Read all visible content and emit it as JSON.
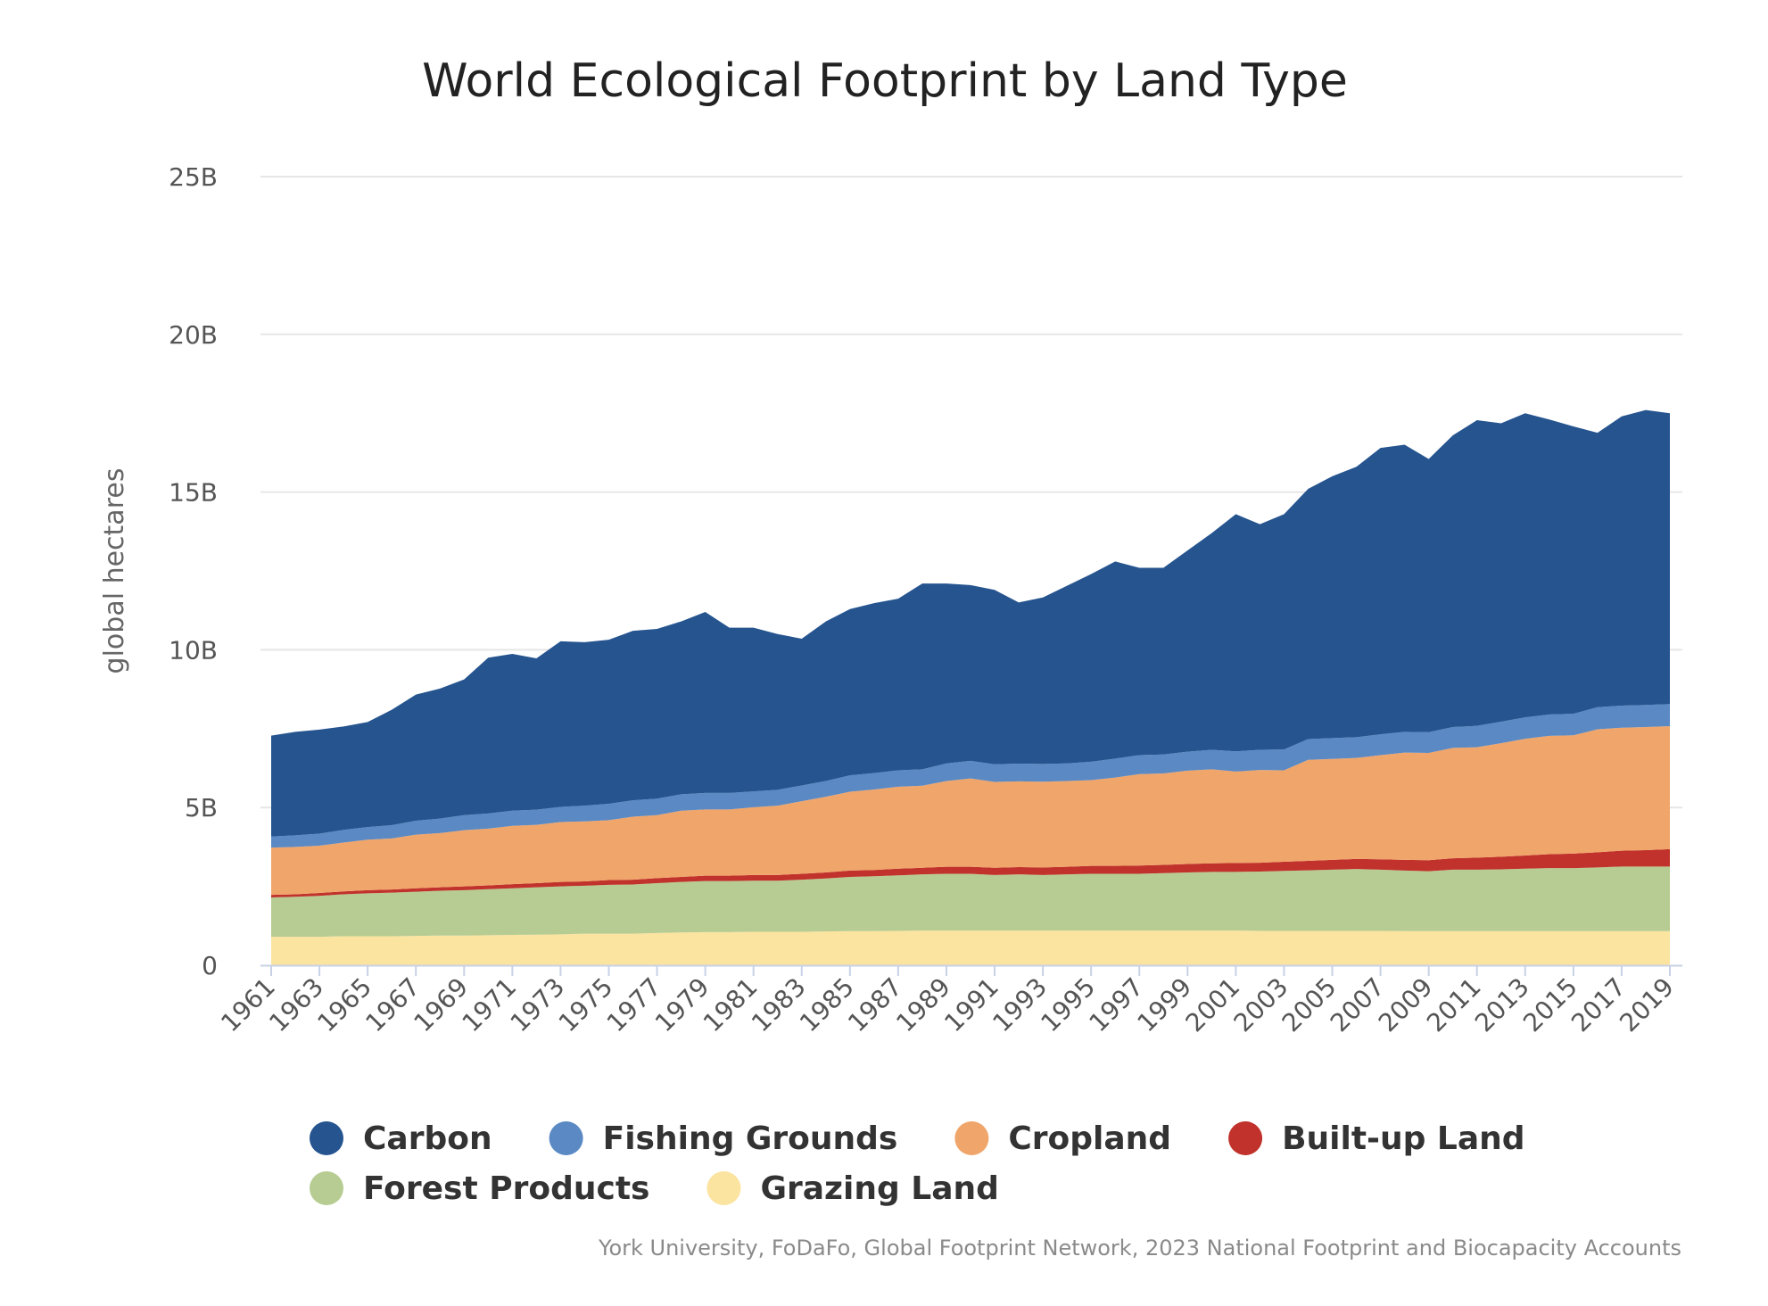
{
  "chart_data": {
    "type": "area",
    "stacked": true,
    "title": "World Ecological Footprint by Land Type",
    "ylabel": "global hectares",
    "xlabel": "",
    "ylim": [
      0,
      25000000000
    ],
    "y_ticks": [
      {
        "value": 0,
        "label": "0"
      },
      {
        "value": 5000000000,
        "label": "5B"
      },
      {
        "value": 10000000000,
        "label": "10B"
      },
      {
        "value": 15000000000,
        "label": "15B"
      },
      {
        "value": 20000000000,
        "label": "20B"
      },
      {
        "value": 25000000000,
        "label": "25B"
      }
    ],
    "x_tick_labels": [
      "1961",
      "1963",
      "1965",
      "1967",
      "1969",
      "1971",
      "1973",
      "1975",
      "1977",
      "1979",
      "1981",
      "1983",
      "1985",
      "1987",
      "1989",
      "1991",
      "1993",
      "1995",
      "1997",
      "1999",
      "2001",
      "2003",
      "2005",
      "2007",
      "2009",
      "2011",
      "2013",
      "2015",
      "2017",
      "2019"
    ],
    "x": [
      1961,
      1962,
      1963,
      1964,
      1965,
      1966,
      1967,
      1968,
      1969,
      1970,
      1971,
      1972,
      1973,
      1974,
      1975,
      1976,
      1977,
      1978,
      1979,
      1980,
      1981,
      1982,
      1983,
      1984,
      1985,
      1986,
      1987,
      1988,
      1989,
      1990,
      1991,
      1992,
      1993,
      1994,
      1995,
      1996,
      1997,
      1998,
      1999,
      2000,
      2001,
      2002,
      2003,
      2004,
      2005,
      2006,
      2007,
      2008,
      2009,
      2010,
      2011,
      2012,
      2013,
      2014,
      2015,
      2016,
      2017,
      2018,
      2019
    ],
    "legend_position": "bottom",
    "series": [
      {
        "name": "Grazing Land",
        "color": "#fbe3a0",
        "values": [
          0.9,
          0.9,
          0.9,
          0.92,
          0.92,
          0.92,
          0.93,
          0.94,
          0.94,
          0.95,
          0.96,
          0.97,
          0.98,
          1.0,
          1.0,
          1.0,
          1.02,
          1.04,
          1.05,
          1.05,
          1.06,
          1.06,
          1.06,
          1.07,
          1.08,
          1.08,
          1.09,
          1.1,
          1.1,
          1.1,
          1.1,
          1.1,
          1.1,
          1.1,
          1.1,
          1.1,
          1.1,
          1.1,
          1.1,
          1.1,
          1.1,
          1.09,
          1.09,
          1.09,
          1.09,
          1.09,
          1.09,
          1.08,
          1.08,
          1.08,
          1.08,
          1.08,
          1.08,
          1.08,
          1.08,
          1.08,
          1.08,
          1.08,
          1.08
        ]
      },
      {
        "name": "Forest Products",
        "color": "#b7cc92",
        "values": [
          1.25,
          1.27,
          1.3,
          1.33,
          1.36,
          1.38,
          1.4,
          1.42,
          1.44,
          1.46,
          1.48,
          1.5,
          1.52,
          1.52,
          1.55,
          1.56,
          1.58,
          1.6,
          1.62,
          1.62,
          1.62,
          1.62,
          1.65,
          1.68,
          1.72,
          1.74,
          1.76,
          1.78,
          1.8,
          1.8,
          1.76,
          1.78,
          1.76,
          1.78,
          1.8,
          1.8,
          1.8,
          1.82,
          1.84,
          1.86,
          1.86,
          1.88,
          1.9,
          1.92,
          1.94,
          1.96,
          1.94,
          1.92,
          1.9,
          1.95,
          1.95,
          1.96,
          1.98,
          2.0,
          2.0,
          2.02,
          2.05,
          2.05,
          2.05
        ]
      },
      {
        "name": "Built-up Land",
        "color": "#c0322b",
        "values": [
          0.08,
          0.08,
          0.09,
          0.09,
          0.1,
          0.1,
          0.11,
          0.11,
          0.12,
          0.12,
          0.13,
          0.13,
          0.14,
          0.14,
          0.15,
          0.15,
          0.16,
          0.16,
          0.17,
          0.17,
          0.18,
          0.18,
          0.19,
          0.19,
          0.2,
          0.2,
          0.21,
          0.21,
          0.22,
          0.22,
          0.23,
          0.23,
          0.24,
          0.24,
          0.25,
          0.25,
          0.26,
          0.26,
          0.27,
          0.27,
          0.28,
          0.28,
          0.29,
          0.3,
          0.31,
          0.32,
          0.33,
          0.34,
          0.35,
          0.36,
          0.38,
          0.4,
          0.42,
          0.44,
          0.46,
          0.48,
          0.5,
          0.52,
          0.55
        ]
      },
      {
        "name": "Cropland",
        "color": "#f0a56a",
        "values": [
          1.5,
          1.5,
          1.5,
          1.55,
          1.6,
          1.62,
          1.7,
          1.72,
          1.78,
          1.8,
          1.85,
          1.85,
          1.9,
          1.9,
          1.9,
          2.0,
          2.0,
          2.1,
          2.1,
          2.1,
          2.15,
          2.2,
          2.3,
          2.4,
          2.5,
          2.55,
          2.6,
          2.6,
          2.72,
          2.8,
          2.72,
          2.72,
          2.72,
          2.72,
          2.72,
          2.8,
          2.9,
          2.9,
          2.96,
          2.98,
          2.9,
          2.94,
          2.9,
          3.2,
          3.2,
          3.2,
          3.3,
          3.4,
          3.4,
          3.5,
          3.5,
          3.6,
          3.7,
          3.75,
          3.75,
          3.9,
          3.9,
          3.9,
          3.9
        ]
      },
      {
        "name": "Fishing Grounds",
        "color": "#5a89c4",
        "values": [
          0.35,
          0.37,
          0.38,
          0.4,
          0.4,
          0.42,
          0.44,
          0.46,
          0.48,
          0.48,
          0.48,
          0.48,
          0.48,
          0.5,
          0.52,
          0.52,
          0.52,
          0.52,
          0.52,
          0.52,
          0.5,
          0.5,
          0.5,
          0.5,
          0.52,
          0.52,
          0.52,
          0.52,
          0.56,
          0.56,
          0.56,
          0.56,
          0.56,
          0.56,
          0.58,
          0.6,
          0.6,
          0.6,
          0.6,
          0.62,
          0.64,
          0.64,
          0.66,
          0.66,
          0.66,
          0.66,
          0.66,
          0.66,
          0.66,
          0.66,
          0.68,
          0.68,
          0.68,
          0.68,
          0.68,
          0.7,
          0.7,
          0.7,
          0.7
        ]
      },
      {
        "name": "Carbon",
        "color": "#25548f",
        "values": [
          3.2,
          3.28,
          3.3,
          3.28,
          3.33,
          3.66,
          4.0,
          4.12,
          4.3,
          4.94,
          4.97,
          4.8,
          5.25,
          5.18,
          5.2,
          5.37,
          5.38,
          5.48,
          5.74,
          5.24,
          5.19,
          4.94,
          4.65,
          5.06,
          5.27,
          5.39,
          5.44,
          5.89,
          5.7,
          5.57,
          5.53,
          5.11,
          5.28,
          5.63,
          5.95,
          6.25,
          5.94,
          5.92,
          6.38,
          6.87,
          7.52,
          7.15,
          7.46,
          7.93,
          8.3,
          8.57,
          9.08,
          9.1,
          8.66,
          9.25,
          9.69,
          9.46,
          9.64,
          9.35,
          9.11,
          8.7,
          9.17,
          9.35,
          9.22
        ]
      }
    ],
    "legend_items": [
      {
        "name": "Carbon",
        "color": "#25548f"
      },
      {
        "name": "Fishing Grounds",
        "color": "#5a89c4"
      },
      {
        "name": "Cropland",
        "color": "#f0a56a"
      },
      {
        "name": "Built-up Land",
        "color": "#c0322b"
      },
      {
        "name": "Forest Products",
        "color": "#b7cc92"
      },
      {
        "name": "Grazing Land",
        "color": "#fbe3a0"
      }
    ],
    "value_unit_multiplier": 1000000000,
    "credit": "York University, FoDaFo, Global Footprint Network, 2023 National Footprint and Biocapacity Accounts"
  }
}
